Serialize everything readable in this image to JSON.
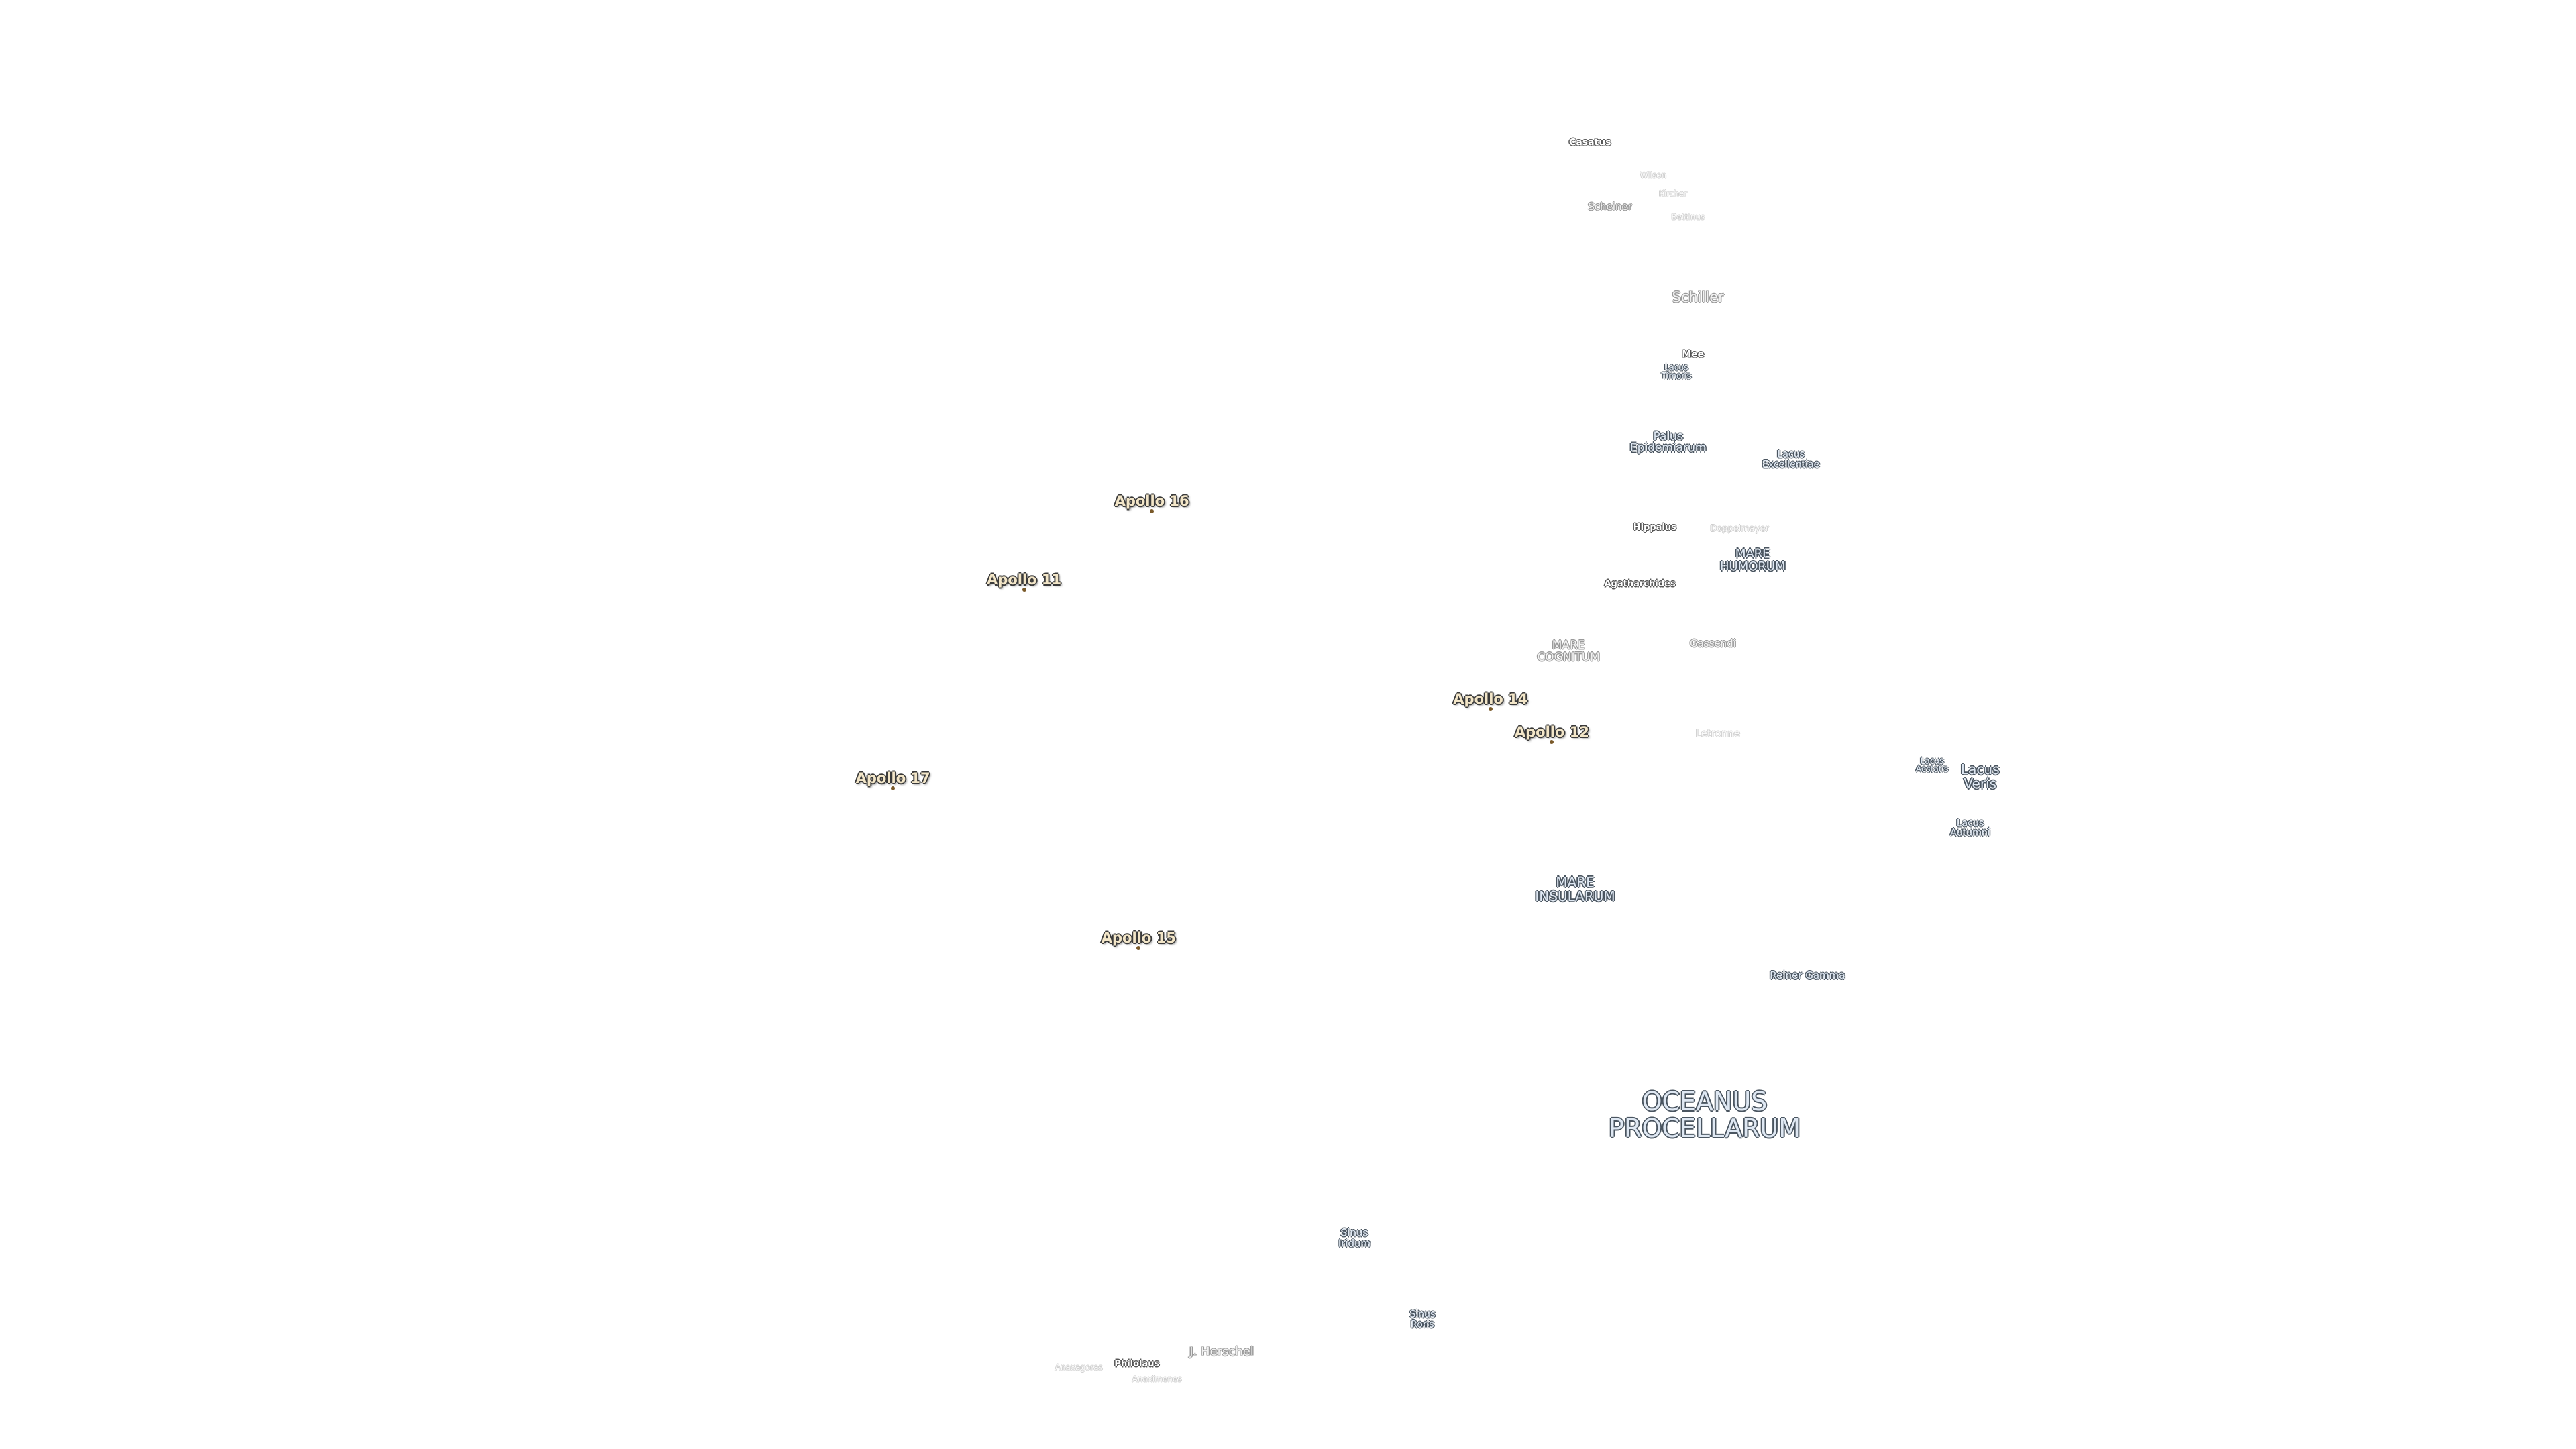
{
  "labels": [
    {
      "lines": [
        "Casatus"
      ]
    },
    {
      "lines": [
        "Wilson"
      ]
    },
    {
      "lines": [
        "Kircher"
      ]
    },
    {
      "lines": [
        "Scheiner"
      ]
    },
    {
      "lines": [
        "Bettinus"
      ]
    },
    {
      "lines": [
        "Schiller"
      ]
    },
    {
      "lines": [
        "Mee"
      ]
    },
    {
      "lines": [
        "Lacus",
        "Timoris"
      ]
    },
    {
      "lines": [
        "Palus",
        "Epidemiarum"
      ]
    },
    {
      "lines": [
        "Lacus",
        "Excellentiae"
      ]
    },
    {
      "lines": [
        "Hippalus"
      ]
    },
    {
      "lines": [
        "Doppelmayer"
      ]
    },
    {
      "lines": [
        "MARE",
        "HUMORUM"
      ]
    },
    {
      "lines": [
        "Agatharchides"
      ]
    },
    {
      "lines": [
        "MARE",
        "COGNITUM"
      ]
    },
    {
      "lines": [
        "Gassendi"
      ]
    },
    {
      "lines": [
        "Apollo 16"
      ]
    },
    {
      "lines": [
        "Apollo 11"
      ]
    },
    {
      "lines": [
        "Apollo 14"
      ]
    },
    {
      "lines": [
        "Apollo 12"
      ]
    },
    {
      "lines": [
        "Letronne"
      ]
    },
    {
      "lines": [
        "Lacus",
        "Aestatis"
      ]
    },
    {
      "lines": [
        "Lacus",
        "Veris"
      ]
    },
    {
      "lines": [
        "Lacus",
        "Autumni"
      ]
    },
    {
      "lines": [
        "Apollo 17"
      ]
    },
    {
      "lines": [
        "MARE",
        "INSULARUM"
      ]
    },
    {
      "lines": [
        "Apollo 15"
      ]
    },
    {
      "lines": [
        "Reiner Gamma"
      ]
    },
    {
      "lines": [
        "OCEANUS",
        "PROCELLARUM"
      ]
    },
    {
      "lines": [
        "Sinus",
        "Iridum"
      ]
    },
    {
      "lines": [
        "Sinus",
        "Roris"
      ]
    },
    {
      "lines": [
        "J. Herschel"
      ]
    },
    {
      "lines": [
        "Philolaus"
      ]
    },
    {
      "lines": [
        "Anaximenes"
      ]
    },
    {
      "lines": [
        "Anaxagoras"
      ]
    }
  ]
}
